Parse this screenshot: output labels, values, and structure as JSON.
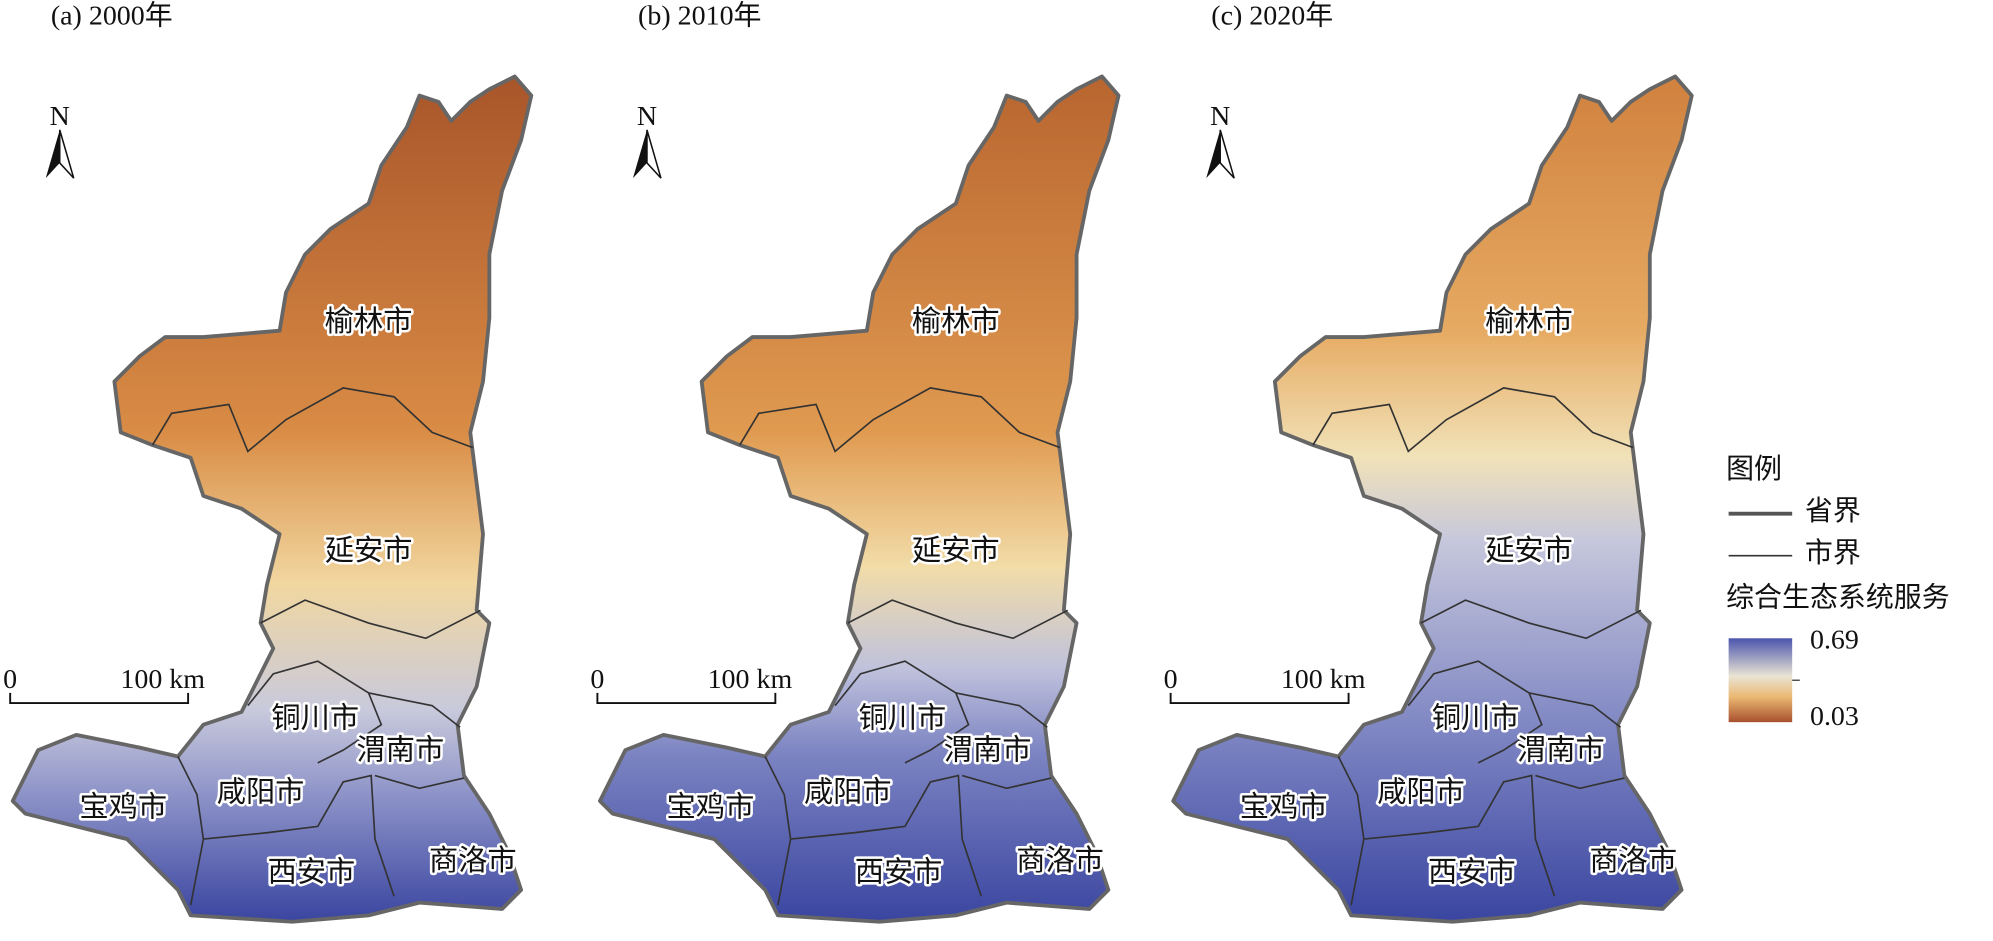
{
  "panels": [
    {
      "title": "(a) 2000年",
      "north": "N",
      "scale": {
        "start": "0",
        "end": "100 km"
      },
      "cities": [
        "榆林市",
        "延安市",
        "铜川市",
        "渭南市",
        "宝鸡市",
        "咸阳市",
        "西安市",
        "商洛市"
      ]
    },
    {
      "title": "(b) 2010年",
      "north": "N",
      "scale": {
        "start": "0",
        "end": "100 km"
      },
      "cities": [
        "榆林市",
        "延安市",
        "铜川市",
        "渭南市",
        "宝鸡市",
        "咸阳市",
        "西安市",
        "商洛市"
      ]
    },
    {
      "title": "(c) 2020年",
      "north": "N",
      "scale": {
        "start": "0",
        "end": "100 km"
      },
      "cities": [
        "榆林市",
        "延安市",
        "铜川市",
        "渭南市",
        "宝鸡市",
        "咸阳市",
        "西安市",
        "商洛市"
      ]
    }
  ],
  "legend": {
    "title": "图例",
    "items": [
      "省界",
      "市界"
    ],
    "colorbar": {
      "title": "综合生态系统服务",
      "max": 0.69,
      "min": 0.03
    }
  }
}
